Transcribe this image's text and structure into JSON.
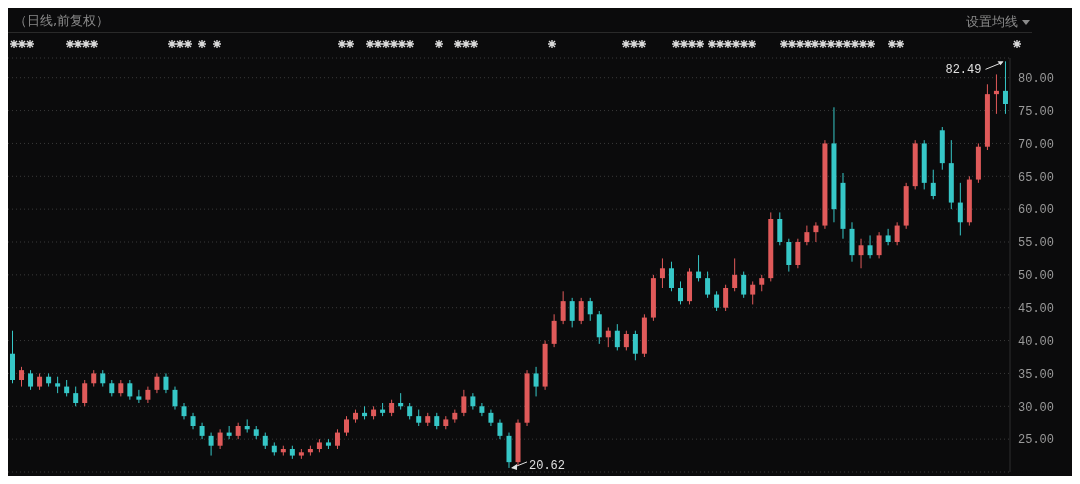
{
  "chart_data": {
    "type": "candlestick",
    "title": "（日线,前复权）",
    "categories": [
      null,
      null,
      null,
      null,
      null,
      null,
      null,
      null,
      null,
      null,
      null,
      null,
      null,
      null,
      null,
      null,
      null,
      null,
      null,
      null,
      null,
      null,
      null,
      null,
      null,
      null,
      null,
      null,
      null,
      null,
      null,
      null,
      null,
      null,
      null,
      null,
      null,
      null,
      null,
      null,
      null,
      null,
      null,
      null,
      null,
      null,
      null,
      null,
      null,
      null,
      null,
      null,
      null,
      null,
      null,
      null,
      null,
      null,
      null,
      null,
      null,
      null,
      null,
      null,
      null,
      null,
      null,
      null,
      null,
      null,
      null,
      null,
      null,
      null,
      null,
      null,
      null,
      null,
      null,
      null,
      null,
      null,
      null,
      null,
      null,
      null,
      null,
      null,
      null,
      null,
      null,
      null,
      null,
      null,
      null,
      null,
      null,
      null,
      null,
      null,
      null,
      null,
      null,
      null,
      null,
      null,
      null,
      null,
      null,
      null,
      null
    ],
    "ohlc": [
      [
        38,
        41.5,
        33.5,
        34
      ],
      [
        34,
        36,
        33,
        35.5
      ],
      [
        35,
        35.5,
        32.5,
        33
      ],
      [
        33,
        35,
        32.5,
        34.5
      ],
      [
        34.5,
        35,
        33,
        33.5
      ],
      [
        33.5,
        34.5,
        32,
        33
      ],
      [
        33,
        34,
        31.5,
        32
      ],
      [
        32,
        33,
        30,
        30.5
      ],
      [
        30.5,
        34,
        30,
        33.5
      ],
      [
        33.5,
        35.5,
        33,
        35
      ],
      [
        35,
        35.5,
        33,
        33.5
      ],
      [
        33.5,
        34,
        31.5,
        32
      ],
      [
        32,
        34,
        31.5,
        33.5
      ],
      [
        33.5,
        34,
        31,
        31.5
      ],
      [
        31.5,
        32.5,
        30.5,
        31
      ],
      [
        31,
        33,
        30.5,
        32.5
      ],
      [
        32.5,
        35,
        32,
        34.5
      ],
      [
        34.5,
        35,
        32,
        32.5
      ],
      [
        32.5,
        33,
        29.5,
        30
      ],
      [
        30,
        30.5,
        28,
        28.5
      ],
      [
        28.5,
        29,
        26.5,
        27
      ],
      [
        27,
        27.5,
        25,
        25.5
      ],
      [
        25.5,
        26,
        22.5,
        24
      ],
      [
        24,
        26.5,
        23.5,
        26
      ],
      [
        26,
        27,
        25,
        25.5
      ],
      [
        25.5,
        27.5,
        25,
        27
      ],
      [
        27,
        28,
        26,
        26.5
      ],
      [
        26.5,
        27,
        25,
        25.5
      ],
      [
        25.5,
        26,
        23.5,
        24
      ],
      [
        24,
        24.5,
        22.5,
        23
      ],
      [
        23,
        24,
        22.5,
        23.5
      ],
      [
        23.5,
        24,
        22,
        22.5
      ],
      [
        22.5,
        23.5,
        22,
        23
      ],
      [
        23,
        24,
        22.5,
        23.5
      ],
      [
        23.5,
        25,
        23,
        24.5
      ],
      [
        24.5,
        25,
        23.5,
        24
      ],
      [
        24,
        26.5,
        23.5,
        26
      ],
      [
        26,
        28.5,
        25.5,
        28
      ],
      [
        28,
        29.5,
        27.5,
        29
      ],
      [
        29,
        30,
        28,
        28.5
      ],
      [
        28.5,
        30,
        28,
        29.5
      ],
      [
        29.5,
        30.5,
        28.5,
        29
      ],
      [
        29,
        31,
        28.5,
        30.5
      ],
      [
        30.5,
        32,
        29.5,
        30
      ],
      [
        30,
        30.5,
        28,
        28.5
      ],
      [
        28.5,
        29.5,
        27,
        27.5
      ],
      [
        27.5,
        29,
        27,
        28.5
      ],
      [
        28.5,
        29,
        26.5,
        27
      ],
      [
        27,
        28.5,
        26.5,
        28
      ],
      [
        28,
        29.5,
        27.5,
        29
      ],
      [
        29,
        32.5,
        28.5,
        31.5
      ],
      [
        31.5,
        32,
        29.5,
        30
      ],
      [
        30,
        30.5,
        28.5,
        29
      ],
      [
        29,
        29.5,
        27,
        27.5
      ],
      [
        27.5,
        28,
        25,
        25.5
      ],
      [
        25.5,
        26,
        20.62,
        21.5
      ],
      [
        21.5,
        28,
        21,
        27.5
      ],
      [
        27.5,
        35.5,
        27,
        35
      ],
      [
        35,
        36,
        31.5,
        33
      ],
      [
        33,
        40,
        32.5,
        39.5
      ],
      [
        39.5,
        44,
        39,
        43
      ],
      [
        43,
        47.5,
        42.5,
        46
      ],
      [
        46,
        46.5,
        42,
        43
      ],
      [
        43,
        46.5,
        42.5,
        46
      ],
      [
        46,
        46.5,
        43,
        44
      ],
      [
        44,
        44.5,
        39.5,
        40.5
      ],
      [
        40.5,
        42,
        39,
        41.5
      ],
      [
        41.5,
        42.5,
        38.5,
        39
      ],
      [
        39,
        41.5,
        38.5,
        41
      ],
      [
        41,
        41.5,
        37,
        38
      ],
      [
        38,
        44,
        37.5,
        43.5
      ],
      [
        43.5,
        50,
        43,
        49.5
      ],
      [
        49.5,
        52.5,
        48,
        51
      ],
      [
        51,
        52,
        47.5,
        48
      ],
      [
        48,
        49,
        45.5,
        46
      ],
      [
        46,
        51,
        45.5,
        50.5
      ],
      [
        50.5,
        53,
        49,
        49.5
      ],
      [
        49.5,
        50.5,
        46.5,
        47
      ],
      [
        47,
        47.5,
        44.5,
        45
      ],
      [
        45,
        48.5,
        44.5,
        48
      ],
      [
        48,
        52.5,
        47.5,
        50
      ],
      [
        50,
        50.5,
        46.5,
        47
      ],
      [
        47,
        49,
        45.5,
        48.5
      ],
      [
        48.5,
        50,
        47.5,
        49.5
      ],
      [
        49.5,
        59.5,
        49,
        58.5
      ],
      [
        58.5,
        59.5,
        54.5,
        55
      ],
      [
        55,
        55.5,
        50.5,
        51.5
      ],
      [
        51.5,
        55.5,
        51,
        55
      ],
      [
        55,
        57.5,
        54.5,
        56.5
      ],
      [
        56.5,
        58,
        55,
        57.5
      ],
      [
        57.5,
        70.5,
        57,
        70
      ],
      [
        70,
        75.5,
        58,
        60
      ],
      [
        64,
        65.5,
        55.5,
        57
      ],
      [
        57,
        58,
        52,
        53
      ],
      [
        53,
        55.5,
        51,
        54.5
      ],
      [
        54.5,
        56,
        52.5,
        53
      ],
      [
        53,
        56.5,
        52.5,
        56
      ],
      [
        56,
        57,
        54.5,
        55
      ],
      [
        55,
        58,
        54.5,
        57.5
      ],
      [
        57.5,
        64,
        57,
        63.5
      ],
      [
        63.5,
        70.5,
        63,
        70
      ],
      [
        70,
        70.5,
        63,
        64
      ],
      [
        64,
        66,
        61.5,
        62
      ],
      [
        72,
        72.5,
        66,
        67
      ],
      [
        67,
        70.5,
        60,
        61
      ],
      [
        61,
        64,
        56,
        58
      ],
      [
        58,
        65,
        57.5,
        64.5
      ],
      [
        64.5,
        70,
        64,
        69.5
      ],
      [
        69.5,
        79,
        69,
        77.5
      ],
      [
        77.5,
        80.5,
        74.5,
        78
      ],
      [
        78,
        82.49,
        74.5,
        76
      ]
    ],
    "colors": [
      "#36c7c7",
      "#e05a5a",
      "#36c7c7",
      "#e05a5a",
      "#36c7c7",
      "#36c7c7",
      "#36c7c7",
      "#36c7c7",
      "#e05a5a",
      "#e05a5a",
      "#36c7c7",
      "#36c7c7",
      "#e05a5a",
      "#36c7c7",
      "#36c7c7",
      "#e05a5a",
      "#e05a5a",
      "#36c7c7",
      "#36c7c7",
      "#36c7c7",
      "#36c7c7",
      "#36c7c7",
      "#36c7c7",
      "#e05a5a",
      "#36c7c7",
      "#e05a5a",
      "#36c7c7",
      "#36c7c7",
      "#36c7c7",
      "#36c7c7",
      "#e05a5a",
      "#36c7c7",
      "#e05a5a",
      "#e05a5a",
      "#e05a5a",
      "#36c7c7",
      "#e05a5a",
      "#e05a5a",
      "#e05a5a",
      "#36c7c7",
      "#e05a5a",
      "#36c7c7",
      "#e05a5a",
      "#36c7c7",
      "#36c7c7",
      "#36c7c7",
      "#e05a5a",
      "#36c7c7",
      "#e05a5a",
      "#e05a5a",
      "#e05a5a",
      "#36c7c7",
      "#36c7c7",
      "#36c7c7",
      "#36c7c7",
      "#36c7c7",
      "#e05a5a",
      "#e05a5a",
      "#36c7c7",
      "#e05a5a",
      "#e05a5a",
      "#e05a5a",
      "#36c7c7",
      "#e05a5a",
      "#36c7c7",
      "#36c7c7",
      "#e05a5a",
      "#36c7c7",
      "#e05a5a",
      "#36c7c7",
      "#e05a5a",
      "#e05a5a",
      "#e05a5a",
      "#36c7c7",
      "#36c7c7",
      "#e05a5a",
      "#36c7c7",
      "#36c7c7",
      "#36c7c7",
      "#e05a5a",
      "#e05a5a",
      "#36c7c7",
      "#e05a5a",
      "#e05a5a",
      "#e05a5a",
      "#36c7c7",
      "#36c7c7",
      "#e05a5a",
      "#e05a5a",
      "#e05a5a",
      "#e05a5a",
      "#36c7c7",
      "#36c7c7",
      "#36c7c7",
      "#e05a5a",
      "#36c7c7",
      "#e05a5a",
      "#36c7c7",
      "#e05a5a",
      "#e05a5a",
      "#e05a5a",
      "#36c7c7",
      "#36c7c7",
      "#36c7c7",
      "#36c7c7",
      "#36c7c7",
      "#e05a5a",
      "#e05a5a",
      "#e05a5a",
      "#e05a5a",
      "#36c7c7"
    ],
    "ylim": [
      20,
      83
    ],
    "yticks": [
      {
        "value": 25,
        "label": "25.00"
      },
      {
        "value": 30,
        "label": "30.00"
      },
      {
        "value": 35,
        "label": "35.00"
      },
      {
        "value": 40,
        "label": "40.00"
      },
      {
        "value": 45,
        "label": "45.00"
      },
      {
        "value": 50,
        "label": "50.00"
      },
      {
        "value": 55,
        "label": "55.00"
      },
      {
        "value": 60,
        "label": "60.00"
      },
      {
        "value": 65,
        "label": "65.00"
      },
      {
        "value": 70,
        "label": "70.00"
      },
      {
        "value": 75,
        "label": "75.00"
      },
      {
        "value": 80,
        "label": "80.00"
      }
    ],
    "grid": "y",
    "tick_labels": "y",
    "annotations": [
      "设置均线",
      "82.49",
      "20.62"
    ]
  }
}
